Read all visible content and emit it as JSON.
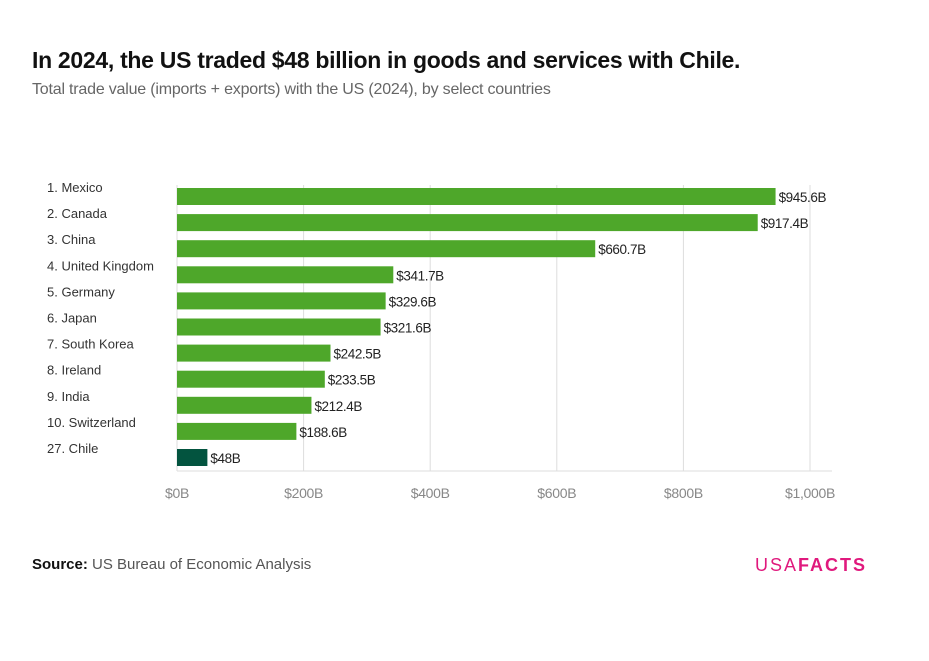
{
  "header": {
    "title": "In 2024, the US traded $48 billion in goods and services with Chile.",
    "subtitle": "Total trade value (imports + exports) with the US (2024), by select countries"
  },
  "footer": {
    "source_label": "Source:",
    "source_text": "US Bureau of Economic Analysis",
    "logo_thin": "USA",
    "logo_bold": "FACTS"
  },
  "colors": {
    "bar": "#4ea72a",
    "highlight": "#03543f",
    "grid": "#dddddd",
    "label": "#333333",
    "tick": "#888888",
    "brand": "#e0197d"
  },
  "chart_data": {
    "type": "bar",
    "orientation": "horizontal",
    "title": "In 2024, the US traded $48 billion in goods and services with Chile.",
    "subtitle": "Total trade value (imports + exports) with the US (2024), by select countries",
    "xlabel": "",
    "ylabel": "",
    "units": "billions USD",
    "xlim": [
      0,
      1000
    ],
    "grid": true,
    "categories": [
      "1. Mexico",
      "2. Canada",
      "3. China",
      "4. United Kingdom",
      "5. Germany",
      "6. Japan",
      "7. South Korea",
      "8. Ireland",
      "9. India",
      "10. Switzerland",
      "27. Chile"
    ],
    "values": [
      945.6,
      917.4,
      660.7,
      341.7,
      329.6,
      321.6,
      242.5,
      233.5,
      212.4,
      188.6,
      48
    ],
    "data_labels": [
      "$945.6B",
      "$917.4B",
      "$660.7B",
      "$341.7B",
      "$329.6B",
      "$321.6B",
      "$242.5B",
      "$233.5B",
      "$212.4B",
      "$188.6B",
      "$48B"
    ],
    "highlighted": [
      "27. Chile"
    ],
    "x_ticks": [
      0,
      200,
      400,
      600,
      800,
      1000
    ],
    "x_tick_labels": [
      "$0B",
      "$200B",
      "$400B",
      "$600B",
      "$800B",
      "$1,000B"
    ]
  }
}
